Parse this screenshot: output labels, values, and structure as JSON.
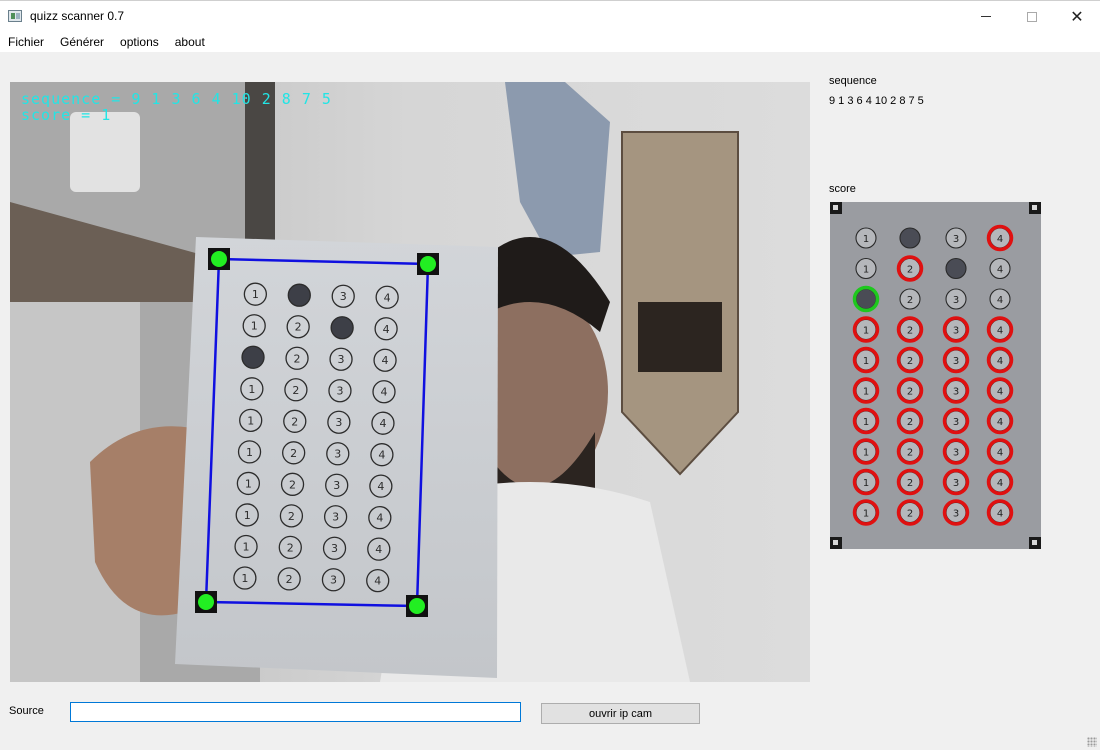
{
  "window": {
    "title": "quizz scanner 0.7",
    "icon": "app-window-icon",
    "minimize_icon": "minimize-icon",
    "maximize_icon": "maximize-icon",
    "close_icon": "close-icon",
    "close_glyph": "✕"
  },
  "menu": {
    "items": [
      {
        "label": "Fichier"
      },
      {
        "label": "Générer"
      },
      {
        "label": "options"
      },
      {
        "label": "about"
      }
    ]
  },
  "camera": {
    "overlay_sequence": "sequence = 9 1 3 6 4 10 2 8 7 5",
    "overlay_score": "score = 1",
    "overlay_color": "#22e5e5",
    "contour_color": "#1010e0",
    "marker_color": "#22ee22",
    "choice_labels": [
      "1",
      "2",
      "3",
      "4"
    ],
    "filled_answers": [
      2,
      3,
      1,
      null,
      null,
      null,
      null,
      null,
      null,
      null
    ]
  },
  "sidebar": {
    "sequence_label": "sequence",
    "sequence_value": "9 1 3 6 4 10 2 8 7 5",
    "score_label": "score",
    "score_grid": {
      "choice_labels": [
        "1",
        "2",
        "3",
        "4"
      ],
      "correct_color": "#1ec81e",
      "wrong_color": "#e01010",
      "rows": [
        {
          "filled": 2,
          "marks": {
            "4": "wrong"
          }
        },
        {
          "filled": 3,
          "marks": {
            "2": "wrong"
          }
        },
        {
          "filled": 1,
          "marks": {
            "1": "correct"
          }
        },
        {
          "filled": null,
          "marks": {
            "1": "wrong",
            "2": "wrong",
            "3": "wrong",
            "4": "wrong"
          }
        },
        {
          "filled": null,
          "marks": {
            "1": "wrong",
            "2": "wrong",
            "3": "wrong",
            "4": "wrong"
          }
        },
        {
          "filled": null,
          "marks": {
            "1": "wrong",
            "2": "wrong",
            "3": "wrong",
            "4": "wrong"
          }
        },
        {
          "filled": null,
          "marks": {
            "1": "wrong",
            "2": "wrong",
            "3": "wrong",
            "4": "wrong"
          }
        },
        {
          "filled": null,
          "marks": {
            "1": "wrong",
            "2": "wrong",
            "3": "wrong",
            "4": "wrong"
          }
        },
        {
          "filled": null,
          "marks": {
            "1": "wrong",
            "2": "wrong",
            "3": "wrong",
            "4": "wrong"
          }
        },
        {
          "filled": null,
          "marks": {
            "1": "wrong",
            "2": "wrong",
            "3": "wrong",
            "4": "wrong"
          }
        }
      ]
    }
  },
  "source": {
    "label": "Source",
    "value": "",
    "button_label": "ouvrir ip cam"
  }
}
